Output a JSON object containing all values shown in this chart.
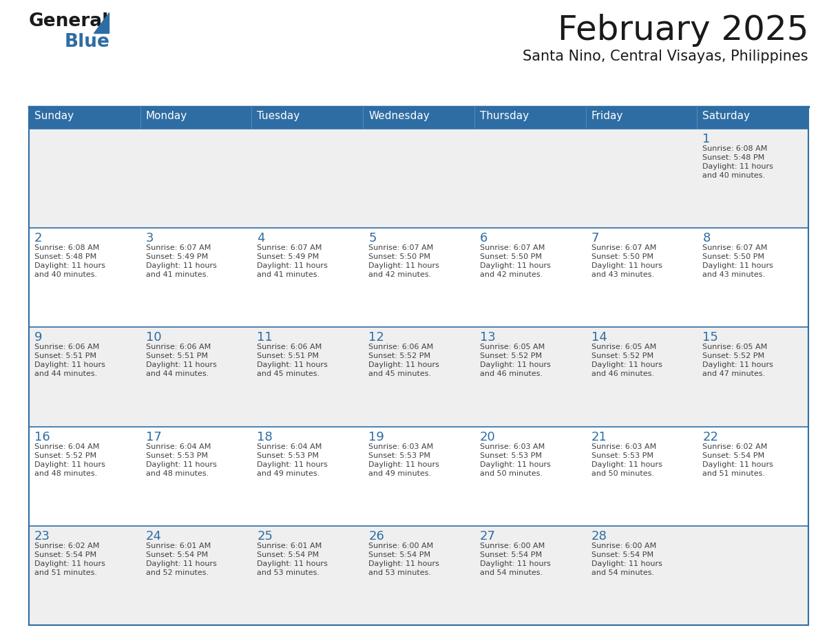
{
  "title": "February 2025",
  "subtitle": "Santa Nino, Central Visayas, Philippines",
  "header_bg": "#2E6DA4",
  "header_text_color": "#FFFFFF",
  "cell_bg_odd": "#EFEFEF",
  "cell_bg_even": "#FFFFFF",
  "day_number_color": "#2E6DA4",
  "cell_text_color": "#404040",
  "border_color": "#2E6DA4",
  "days_of_week": [
    "Sunday",
    "Monday",
    "Tuesday",
    "Wednesday",
    "Thursday",
    "Friday",
    "Saturday"
  ],
  "calendar_data": [
    [
      null,
      null,
      null,
      null,
      null,
      null,
      {
        "day": 1,
        "sunrise": "6:08 AM",
        "sunset": "5:48 PM",
        "daylight": "11 hours",
        "daylight2": "and 40 minutes."
      }
    ],
    [
      {
        "day": 2,
        "sunrise": "6:08 AM",
        "sunset": "5:48 PM",
        "daylight": "11 hours",
        "daylight2": "and 40 minutes."
      },
      {
        "day": 3,
        "sunrise": "6:07 AM",
        "sunset": "5:49 PM",
        "daylight": "11 hours",
        "daylight2": "and 41 minutes."
      },
      {
        "day": 4,
        "sunrise": "6:07 AM",
        "sunset": "5:49 PM",
        "daylight": "11 hours",
        "daylight2": "and 41 minutes."
      },
      {
        "day": 5,
        "sunrise": "6:07 AM",
        "sunset": "5:50 PM",
        "daylight": "11 hours",
        "daylight2": "and 42 minutes."
      },
      {
        "day": 6,
        "sunrise": "6:07 AM",
        "sunset": "5:50 PM",
        "daylight": "11 hours",
        "daylight2": "and 42 minutes."
      },
      {
        "day": 7,
        "sunrise": "6:07 AM",
        "sunset": "5:50 PM",
        "daylight": "11 hours",
        "daylight2": "and 43 minutes."
      },
      {
        "day": 8,
        "sunrise": "6:07 AM",
        "sunset": "5:50 PM",
        "daylight": "11 hours",
        "daylight2": "and 43 minutes."
      }
    ],
    [
      {
        "day": 9,
        "sunrise": "6:06 AM",
        "sunset": "5:51 PM",
        "daylight": "11 hours",
        "daylight2": "and 44 minutes."
      },
      {
        "day": 10,
        "sunrise": "6:06 AM",
        "sunset": "5:51 PM",
        "daylight": "11 hours",
        "daylight2": "and 44 minutes."
      },
      {
        "day": 11,
        "sunrise": "6:06 AM",
        "sunset": "5:51 PM",
        "daylight": "11 hours",
        "daylight2": "and 45 minutes."
      },
      {
        "day": 12,
        "sunrise": "6:06 AM",
        "sunset": "5:52 PM",
        "daylight": "11 hours",
        "daylight2": "and 45 minutes."
      },
      {
        "day": 13,
        "sunrise": "6:05 AM",
        "sunset": "5:52 PM",
        "daylight": "11 hours",
        "daylight2": "and 46 minutes."
      },
      {
        "day": 14,
        "sunrise": "6:05 AM",
        "sunset": "5:52 PM",
        "daylight": "11 hours",
        "daylight2": "and 46 minutes."
      },
      {
        "day": 15,
        "sunrise": "6:05 AM",
        "sunset": "5:52 PM",
        "daylight": "11 hours",
        "daylight2": "and 47 minutes."
      }
    ],
    [
      {
        "day": 16,
        "sunrise": "6:04 AM",
        "sunset": "5:52 PM",
        "daylight": "11 hours",
        "daylight2": "and 48 minutes."
      },
      {
        "day": 17,
        "sunrise": "6:04 AM",
        "sunset": "5:53 PM",
        "daylight": "11 hours",
        "daylight2": "and 48 minutes."
      },
      {
        "day": 18,
        "sunrise": "6:04 AM",
        "sunset": "5:53 PM",
        "daylight": "11 hours",
        "daylight2": "and 49 minutes."
      },
      {
        "day": 19,
        "sunrise": "6:03 AM",
        "sunset": "5:53 PM",
        "daylight": "11 hours",
        "daylight2": "and 49 minutes."
      },
      {
        "day": 20,
        "sunrise": "6:03 AM",
        "sunset": "5:53 PM",
        "daylight": "11 hours",
        "daylight2": "and 50 minutes."
      },
      {
        "day": 21,
        "sunrise": "6:03 AM",
        "sunset": "5:53 PM",
        "daylight": "11 hours",
        "daylight2": "and 50 minutes."
      },
      {
        "day": 22,
        "sunrise": "6:02 AM",
        "sunset": "5:54 PM",
        "daylight": "11 hours",
        "daylight2": "and 51 minutes."
      }
    ],
    [
      {
        "day": 23,
        "sunrise": "6:02 AM",
        "sunset": "5:54 PM",
        "daylight": "11 hours",
        "daylight2": "and 51 minutes."
      },
      {
        "day": 24,
        "sunrise": "6:01 AM",
        "sunset": "5:54 PM",
        "daylight": "11 hours",
        "daylight2": "and 52 minutes."
      },
      {
        "day": 25,
        "sunrise": "6:01 AM",
        "sunset": "5:54 PM",
        "daylight": "11 hours",
        "daylight2": "and 53 minutes."
      },
      {
        "day": 26,
        "sunrise": "6:00 AM",
        "sunset": "5:54 PM",
        "daylight": "11 hours",
        "daylight2": "and 53 minutes."
      },
      {
        "day": 27,
        "sunrise": "6:00 AM",
        "sunset": "5:54 PM",
        "daylight": "11 hours",
        "daylight2": "and 54 minutes."
      },
      {
        "day": 28,
        "sunrise": "6:00 AM",
        "sunset": "5:54 PM",
        "daylight": "11 hours",
        "daylight2": "and 54 minutes."
      },
      null
    ]
  ],
  "logo_text_general": "General",
  "logo_text_blue": "Blue",
  "logo_color_general": "#1a1a1a",
  "logo_color_blue": "#2E6DA4",
  "logo_triangle_color": "#2E6DA4",
  "fig_width": 11.88,
  "fig_height": 9.18,
  "dpi": 100
}
